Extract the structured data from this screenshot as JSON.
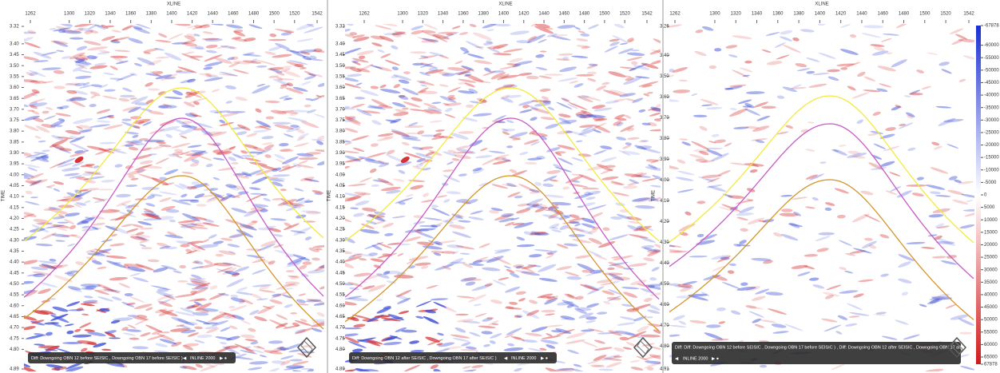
{
  "panels": [
    {
      "x_axis_label": "XLINE",
      "y_axis_label": "TIME",
      "xlim": [
        1262,
        1542
      ],
      "xticks": [
        1262,
        1300,
        1320,
        1340,
        1360,
        1380,
        1400,
        1420,
        1440,
        1460,
        1480,
        1500,
        1520,
        1542
      ],
      "ylim": [
        3.32,
        4.89
      ],
      "yticks": [
        3.32,
        {
          "value": 3.4,
          "label": "3.40"
        },
        3.45,
        {
          "value": 3.5,
          "label": "3.50"
        },
        3.55,
        {
          "value": 3.6,
          "label": "3.60"
        },
        3.65,
        {
          "value": 3.7,
          "label": "3.70"
        },
        3.75,
        {
          "value": 3.8,
          "label": "3.80"
        },
        3.85,
        {
          "value": 3.9,
          "label": "3.90"
        },
        3.95,
        {
          "value": 4.0,
          "label": "4.00"
        },
        4.05,
        {
          "value": 4.1,
          "label": "4.10"
        },
        4.15,
        {
          "value": 4.2,
          "label": "4.20"
        },
        4.25,
        {
          "value": 4.3,
          "label": "4.30"
        },
        4.35,
        {
          "value": 4.4,
          "label": "4.40"
        },
        4.45,
        {
          "value": 4.5,
          "label": "4.50"
        },
        4.55,
        {
          "value": 4.6,
          "label": "4.60"
        },
        4.65,
        {
          "value": 4.7,
          "label": "4.70"
        },
        4.75,
        {
          "value": 4.8,
          "label": "4.80"
        },
        4.89
      ],
      "caption": "Diff: Downgoing OBN 12 before SEISIC , Downgoing OBN 17 before SEISIC )",
      "inline": "INLINE 2000"
    },
    {
      "x_axis_label": "XLINE",
      "y_axis_label": "TIME",
      "xlim": [
        1262,
        1542
      ],
      "xticks": [
        1262,
        1300,
        1320,
        1340,
        1360,
        1380,
        1400,
        1420,
        1440,
        1460,
        1480,
        1500,
        1520,
        1542
      ],
      "ylim": [
        3.32,
        4.89
      ],
      "yticks": [
        3.32,
        {
          "value": 3.4,
          "label": "3.40"
        },
        3.45,
        {
          "value": 3.5,
          "label": "3.50"
        },
        3.55,
        {
          "value": 3.6,
          "label": "3.60"
        },
        3.65,
        {
          "value": 3.7,
          "label": "3.70"
        },
        3.75,
        {
          "value": 3.8,
          "label": "3.80"
        },
        3.85,
        {
          "value": 3.9,
          "label": "3.90"
        },
        3.95,
        {
          "value": 4.0,
          "label": "4.00"
        },
        4.05,
        {
          "value": 4.1,
          "label": "4.10"
        },
        4.15,
        {
          "value": 4.2,
          "label": "4.20"
        },
        4.25,
        {
          "value": 4.3,
          "label": "4.30"
        },
        4.35,
        {
          "value": 4.4,
          "label": "4.40"
        },
        4.45,
        {
          "value": 4.5,
          "label": "4.50"
        },
        4.55,
        {
          "value": 4.6,
          "label": "4.60"
        },
        4.65,
        {
          "value": 4.7,
          "label": "4.70"
        },
        4.75,
        {
          "value": 4.8,
          "label": "4.80"
        },
        4.89
      ],
      "caption": "Diff: Downgoing OBN 12 after SEISIC , Downgoing OBN 17 after SEISIC )",
      "inline": "INLINE 2000"
    },
    {
      "x_axis_label": "XLINE",
      "y_axis_label": "TIME",
      "xlim": [
        1262,
        1542
      ],
      "xticks": [
        1262,
        1300,
        1320,
        1340,
        1360,
        1380,
        1400,
        1420,
        1440,
        1460,
        1480,
        1500,
        1520,
        1542
      ],
      "ylim": [
        3.26,
        4.91
      ],
      "yticks": [
        3.26,
        {
          "value": 3.4,
          "label": "3.40"
        },
        {
          "value": 3.5,
          "label": "3.50"
        },
        {
          "value": 3.6,
          "label": "3.60"
        },
        {
          "value": 3.7,
          "label": "3.70"
        },
        {
          "value": 3.8,
          "label": "3.80"
        },
        {
          "value": 3.9,
          "label": "3.90"
        },
        {
          "value": 4.0,
          "label": "4.00"
        },
        {
          "value": 4.1,
          "label": "4.10"
        },
        {
          "value": 4.2,
          "label": "4.20"
        },
        {
          "value": 4.3,
          "label": "4.30"
        },
        {
          "value": 4.4,
          "label": "4.40"
        },
        {
          "value": 4.5,
          "label": "4.50"
        },
        {
          "value": 4.6,
          "label": "4.60"
        },
        {
          "value": 4.7,
          "label": "4.70"
        },
        {
          "value": 4.8,
          "label": "4.80"
        },
        4.91
      ],
      "caption": "Diff: Diff: Downgoing OBN 12 before SEISIC , Downgoing OBN 17 before SEISIC ) , Diff: Downgoing OBN 12 after SEISIC , Downgoing OBN 17 after SEISIC )",
      "inline": "INLINE 2000"
    }
  ],
  "colorbar": {
    "lim": [
      -67878,
      67878
    ],
    "ticks": [
      -67878,
      -60000,
      -55000,
      -50000,
      -45000,
      -40000,
      -35000,
      -30000,
      -25000,
      -20000,
      -15000,
      -10000,
      -5000,
      0,
      5000,
      10000,
      15000,
      20000,
      25000,
      30000,
      35000,
      40000,
      45000,
      50000,
      55000,
      60000,
      65000,
      67878
    ]
  }
}
